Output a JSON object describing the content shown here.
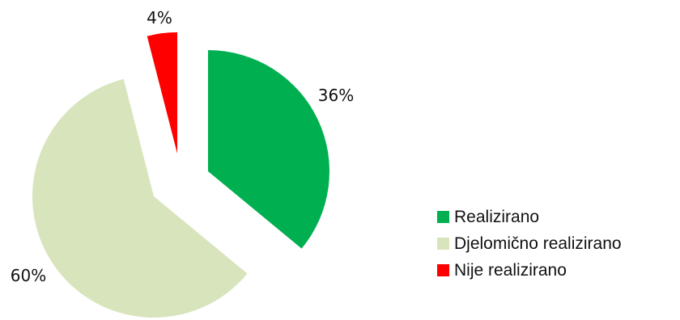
{
  "chart_data": {
    "type": "pie",
    "categories": [
      "Realizirano",
      "Djelomično realizirano",
      "Nije realizirano"
    ],
    "values": [
      36,
      60,
      4
    ],
    "data_labels": [
      "36%",
      "60%",
      "4%"
    ],
    "colors": [
      "#00b050",
      "#d8e4bc",
      "#ff0000"
    ],
    "start": "12 o'clock, clockwise",
    "exploded": true,
    "legend_position": "right"
  }
}
